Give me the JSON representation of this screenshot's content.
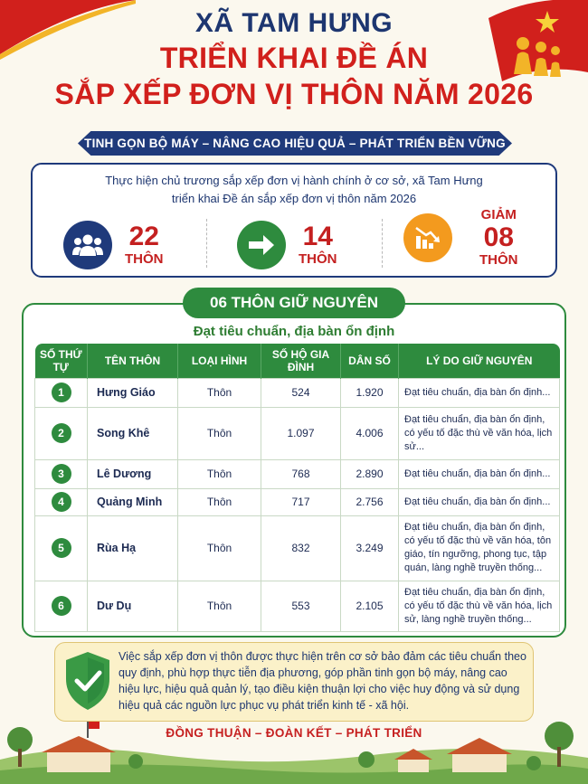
{
  "header": {
    "commune": "XÃ TAM HƯNG",
    "title_line1": "TRIỂN KHAI ĐỀ ÁN",
    "title_line2": "SẮP XẾP ĐƠN VỊ THÔN NĂM 2026",
    "ribbon": "TINH GỌN BỘ MÁY – NÂNG CAO HIỆU QUẢ – PHÁT TRIỂN BỀN VỮNG"
  },
  "intro": {
    "line1": "Thực hiện chủ trương sắp xếp đơn vị hành chính ở cơ sở, xã Tam Hưng",
    "line2": "triển khai Đề án sắp xếp đơn vị thôn năm 2026"
  },
  "stats": [
    {
      "icon": "people-icon",
      "color": "#1f3a7b",
      "prefix": "",
      "value": "22",
      "unit": "THÔN"
    },
    {
      "icon": "arrow-right-icon",
      "color": "#2e8b3e",
      "prefix": "",
      "value": "14",
      "unit": "THÔN"
    },
    {
      "icon": "chart-down-icon",
      "color": "#f39a1e",
      "prefix": "GIẢM",
      "value": "08",
      "unit": "THÔN"
    }
  ],
  "section": {
    "pill": "06 THÔN GIỮ NGUYÊN",
    "subtitle": "Đạt tiêu chuẩn, địa bàn ổn định"
  },
  "table": {
    "headers": [
      "SỐ THỨ TỰ",
      "TÊN THÔN",
      "LOẠI HÌNH",
      "SỐ HỘ GIA ĐÌNH",
      "DÂN SỐ",
      "LÝ DO GIỮ NGUYÊN"
    ],
    "rows": [
      {
        "no": "1",
        "name": "Hưng Giáo",
        "type": "Thôn",
        "households": "524",
        "population": "1.920",
        "reason": "Đạt tiêu chuẩn, địa bàn ổn định..."
      },
      {
        "no": "2",
        "name": "Song Khê",
        "type": "Thôn",
        "households": "1.097",
        "population": "4.006",
        "reason": "Đạt tiêu chuẩn, địa bàn ổn định, có yếu tố đặc thù về văn hóa, lịch sử..."
      },
      {
        "no": "3",
        "name": "Lê Dương",
        "type": "Thôn",
        "households": "768",
        "population": "2.890",
        "reason": "Đạt tiêu chuẩn, địa bàn ổn định..."
      },
      {
        "no": "4",
        "name": "Quảng Minh",
        "type": "Thôn",
        "households": "717",
        "population": "2.756",
        "reason": "Đạt tiêu chuẩn, địa bàn ổn định..."
      },
      {
        "no": "5",
        "name": "Rùa Hạ",
        "type": "Thôn",
        "households": "832",
        "population": "3.249",
        "reason": "Đạt tiêu chuẩn, địa bàn ổn định, có yếu tố đặc thù về văn hóa, tôn giáo, tín ngưỡng, phong tục, tập quán, làng nghề truyền thống..."
      },
      {
        "no": "6",
        "name": "Dư Dụ",
        "type": "Thôn",
        "households": "553",
        "population": "2.105",
        "reason": "Đạt tiêu chuẩn, địa bàn ổn định, có yếu tố đặc thù về văn hóa, lịch sử, làng nghề truyền thống..."
      }
    ]
  },
  "note": "Việc sắp xếp đơn vị thôn được thực hiện trên cơ sở bảo đảm các tiêu chuẩn theo quy định, phù hợp thực tiễn địa phương, góp phần tinh gọn bộ máy, nâng cao hiệu lực, hiệu quả quản lý, tạo điều kiện thuận lợi cho việc huy động và sử dụng hiệu quả các nguồn lực phục vụ phát triển kinh tế - xã hội.",
  "footer": {
    "slogan": "ĐỒNG THUẬN – ĐOÀN KẾT – PHÁT TRIỂN"
  },
  "colors": {
    "navy": "#1f3a7b",
    "red": "#d1201c",
    "green": "#2e8b3e",
    "orange": "#f39a1e",
    "background": "#fbf8ee"
  }
}
